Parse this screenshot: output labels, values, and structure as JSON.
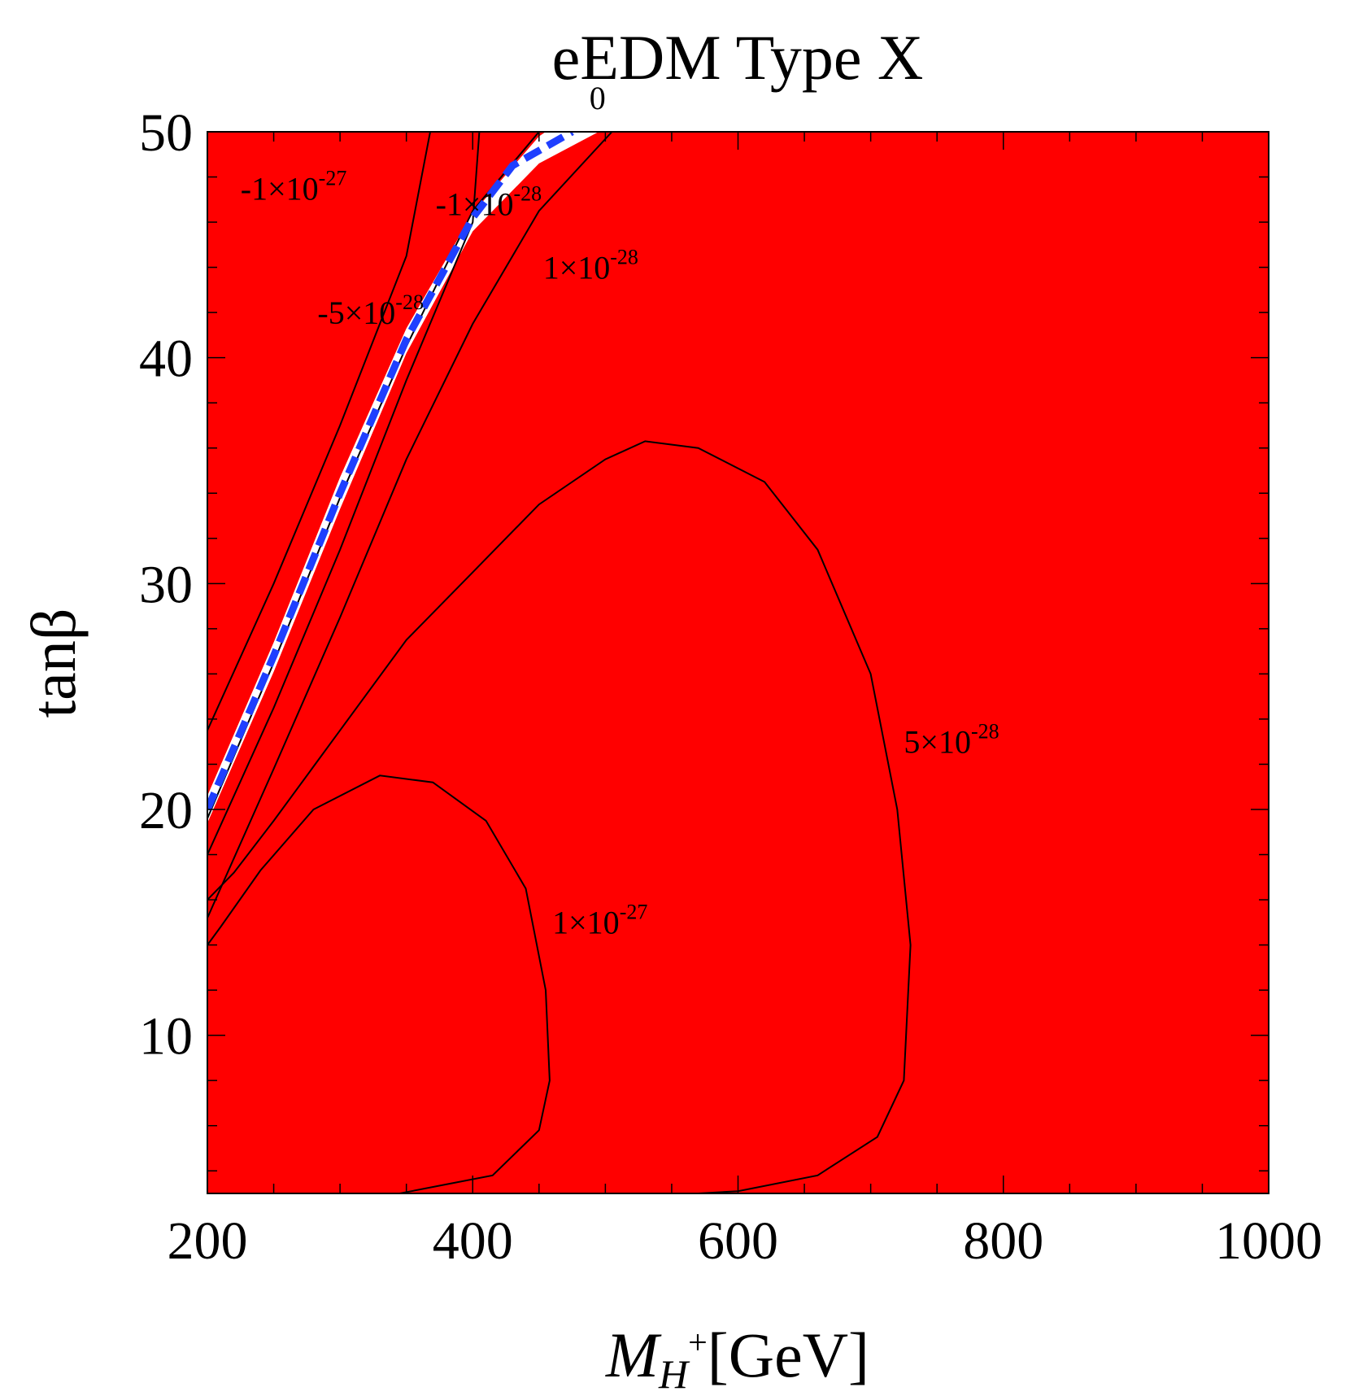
{
  "chart_data": {
    "type": "contour",
    "title": "eEDM Type X",
    "xlabel": {
      "base": "M",
      "sub": "H",
      "sup": "+",
      "unit": "[GeV]"
    },
    "ylabel": "tanβ",
    "xlim": [
      200,
      1000
    ],
    "ylim": [
      3,
      50
    ],
    "x_ticks": [
      200,
      400,
      600,
      800,
      1000
    ],
    "y_ticks": [
      10,
      20,
      30,
      40,
      50
    ],
    "x_minor_step": 50,
    "y_minor_step": 2,
    "fill_color": "#ff0000",
    "allowed_color": "#ffffff",
    "zero_line_color": "#1f3fff",
    "contours": [
      {
        "label": "-1×10",
        "exp": "-27",
        "label_at": [
          225,
          47
        ],
        "points": [
          [
            200,
            23.5
          ],
          [
            250,
            30
          ],
          [
            300,
            37
          ],
          [
            350,
            44.5
          ],
          [
            368,
            50
          ]
        ]
      },
      {
        "label": "-5×10",
        "exp": "-28",
        "label_at": [
          283,
          41.5
        ],
        "points": [
          [
            200,
            18
          ],
          [
            250,
            24.5
          ],
          [
            300,
            31.5
          ],
          [
            350,
            39
          ],
          [
            400,
            46
          ],
          [
            405,
            50
          ]
        ]
      },
      {
        "label": "-1×10",
        "exp": "-28",
        "label_at": [
          372,
          46.3
        ],
        "points": [
          [
            200,
            19.6
          ],
          [
            250,
            26.5
          ],
          [
            300,
            33.8
          ],
          [
            350,
            40.5
          ],
          [
            400,
            46.5
          ],
          [
            450,
            50
          ]
        ]
      },
      {
        "label": "1×10",
        "exp": "-28",
        "label_at": [
          453,
          43.5
        ],
        "points": [
          [
            200,
            15.2
          ],
          [
            250,
            21.8
          ],
          [
            300,
            28.5
          ],
          [
            350,
            35.5
          ],
          [
            400,
            41.5
          ],
          [
            450,
            46.5
          ],
          [
            505,
            50
          ]
        ]
      },
      {
        "label": "5×10",
        "exp": "-28",
        "label_at": [
          725,
          22.5
        ],
        "points": [
          [
            200,
            16
          ],
          [
            220,
            17.2
          ],
          [
            250,
            19.5
          ],
          [
            300,
            23.5
          ],
          [
            350,
            27.5
          ],
          [
            400,
            30.5
          ],
          [
            450,
            33.5
          ],
          [
            500,
            35.5
          ],
          [
            530,
            36.3
          ],
          [
            570,
            36
          ],
          [
            620,
            34.5
          ],
          [
            660,
            31.5
          ],
          [
            700,
            26
          ],
          [
            720,
            20
          ],
          [
            730,
            14
          ],
          [
            725,
            8
          ],
          [
            705,
            5.5
          ],
          [
            660,
            3.8
          ],
          [
            600,
            3.1
          ],
          [
            570,
            3
          ]
        ]
      },
      {
        "label": "1×10",
        "exp": "-27",
        "label_at": [
          460,
          14.5
        ],
        "points": [
          [
            200,
            14
          ],
          [
            210,
            14.8
          ],
          [
            240,
            17.3
          ],
          [
            280,
            20
          ],
          [
            330,
            21.5
          ],
          [
            370,
            21.2
          ],
          [
            410,
            19.5
          ],
          [
            440,
            16.5
          ],
          [
            455,
            12
          ],
          [
            458,
            8
          ],
          [
            450,
            5.8
          ],
          [
            415,
            3.8
          ],
          [
            380,
            3.4
          ],
          [
            345,
            3
          ]
        ]
      }
    ],
    "zero_line": {
      "label": "0",
      "label_at": [
        488,
        51.0
      ],
      "points": [
        [
          200,
          20
        ],
        [
          250,
          26.8
        ],
        [
          300,
          34
        ],
        [
          350,
          40.8
        ],
        [
          400,
          46.2
        ],
        [
          430,
          48.5
        ],
        [
          475,
          50
        ]
      ]
    },
    "allowed_band": {
      "upper": [
        [
          200,
          20.6
        ],
        [
          250,
          27.4
        ],
        [
          300,
          34.7
        ],
        [
          350,
          41.3
        ],
        [
          400,
          46.4
        ],
        [
          450,
          49.8
        ],
        [
          455,
          50
        ]
      ],
      "lower": [
        [
          200,
          19.4
        ],
        [
          250,
          26.1
        ],
        [
          300,
          33.3
        ],
        [
          350,
          40.2
        ],
        [
          400,
          45.6
        ],
        [
          450,
          48.6
        ],
        [
          495,
          50
        ]
      ]
    }
  }
}
